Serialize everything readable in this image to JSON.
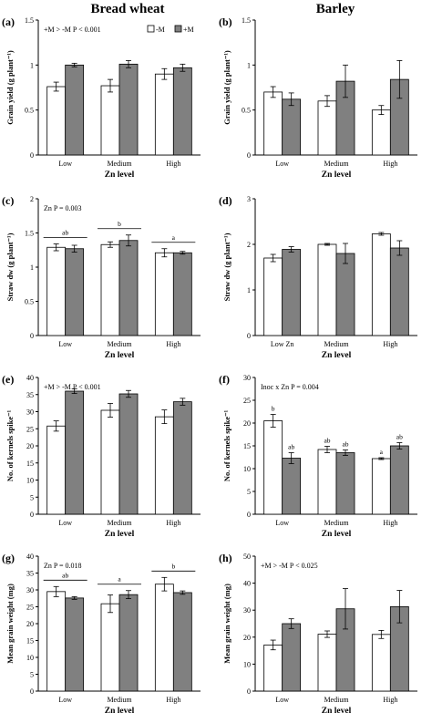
{
  "titles": {
    "left": "Bread wheat",
    "right": "Barley"
  },
  "legend": {
    "minus": "-M",
    "plus": "+M"
  },
  "colors": {
    "minus": "#ffffff",
    "plus": "#808080",
    "axis": "#000000"
  },
  "chart_data": [
    {
      "panel": "(a)",
      "type": "bar",
      "title": "",
      "ylabel": "Grain yield (g plant⁻¹)",
      "xlabel": "Zn level",
      "ylim": [
        0,
        1.5
      ],
      "yticks": [
        0,
        0.5,
        1,
        1.5
      ],
      "categories": [
        "Low",
        "Medium",
        "High"
      ],
      "series": [
        {
          "name": "-M",
          "values": [
            0.76,
            0.77,
            0.9
          ],
          "errors": [
            0.05,
            0.07,
            0.06
          ]
        },
        {
          "name": "+M",
          "values": [
            1.0,
            1.01,
            0.97
          ],
          "errors": [
            0.02,
            0.04,
            0.04
          ]
        }
      ],
      "annotation": "+M > -M  P < 0.001",
      "legend": true
    },
    {
      "panel": "(b)",
      "type": "bar",
      "title": "",
      "ylabel": "Grain yield (g plant⁻¹)",
      "xlabel": "Zn level",
      "ylim": [
        0,
        1.5
      ],
      "yticks": [
        0,
        0.5,
        1,
        1.5
      ],
      "categories": [
        "Low",
        "Medium",
        "High"
      ],
      "series": [
        {
          "name": "-M",
          "values": [
            0.7,
            0.6,
            0.5
          ],
          "errors": [
            0.06,
            0.06,
            0.05
          ]
        },
        {
          "name": "+M",
          "values": [
            0.62,
            0.82,
            0.84
          ],
          "errors": [
            0.07,
            0.18,
            0.21
          ]
        }
      ]
    },
    {
      "panel": "(c)",
      "type": "bar",
      "title": "",
      "ylabel": "Straw dw  (g plant⁻¹)",
      "xlabel": "Zn level",
      "ylim": [
        0,
        2
      ],
      "yticks": [
        0,
        0.5,
        1,
        1.5,
        2
      ],
      "categories": [
        "Low",
        "Medium",
        "High"
      ],
      "series": [
        {
          "name": "-M",
          "values": [
            1.29,
            1.33,
            1.21
          ],
          "errors": [
            0.05,
            0.04,
            0.06
          ]
        },
        {
          "name": "+M",
          "values": [
            1.27,
            1.39,
            1.21
          ],
          "errors": [
            0.05,
            0.08,
            0.02
          ]
        }
      ],
      "annotation": "Zn  P = 0.003",
      "sig_letters": [
        "ab",
        "b",
        "a"
      ]
    },
    {
      "panel": "(d)",
      "type": "bar",
      "title": "",
      "ylabel": "Straw dw  (g plant⁻¹)",
      "xlabel": "Zn level",
      "ylim": [
        0,
        3
      ],
      "yticks": [
        0,
        1,
        2,
        3
      ],
      "categories": [
        "Low Zn",
        "Medium",
        "High"
      ],
      "series": [
        {
          "name": "-M",
          "values": [
            1.7,
            2.0,
            2.23
          ],
          "errors": [
            0.08,
            0.02,
            0.03
          ]
        },
        {
          "name": "+M",
          "values": [
            1.89,
            1.8,
            1.92
          ],
          "errors": [
            0.06,
            0.22,
            0.16
          ]
        }
      ]
    },
    {
      "panel": "(e)",
      "type": "bar",
      "title": "",
      "ylabel": "No. of kernels spike⁻¹",
      "xlabel": "Zn level",
      "ylim": [
        0,
        40
      ],
      "yticks": [
        0,
        5,
        10,
        15,
        20,
        25,
        30,
        35,
        40
      ],
      "categories": [
        "Low",
        "Medium",
        "High"
      ],
      "series": [
        {
          "name": "-M",
          "values": [
            25.8,
            30.4,
            28.5
          ],
          "errors": [
            1.5,
            2.0,
            2.0
          ]
        },
        {
          "name": "+M",
          "values": [
            36.0,
            35.2,
            32.9
          ],
          "errors": [
            0.7,
            1.0,
            1.0
          ]
        }
      ],
      "annotation": "+M > -M  P < 0.001"
    },
    {
      "panel": "(f)",
      "type": "bar",
      "title": "",
      "ylabel": "No. of kernels spike⁻¹",
      "xlabel": "Zn level",
      "ylim": [
        0,
        30
      ],
      "yticks": [
        0,
        5,
        10,
        15,
        20,
        25,
        30
      ],
      "categories": [
        "Low",
        "Medium",
        "High"
      ],
      "series": [
        {
          "name": "-M",
          "values": [
            20.5,
            14.2,
            12.2
          ],
          "errors": [
            1.4,
            0.7,
            0.2
          ],
          "sig": [
            "b",
            "ab",
            "a"
          ]
        },
        {
          "name": "+M",
          "values": [
            12.3,
            13.5,
            15.0
          ],
          "errors": [
            1.2,
            0.6,
            0.7
          ],
          "sig": [
            "ab",
            "ab",
            "ab"
          ]
        }
      ],
      "annotation": "Inoc x Zn  P = 0.004"
    },
    {
      "panel": "(g)",
      "type": "bar",
      "title": "",
      "ylabel": "Mean grain weight (mg)",
      "xlabel": "Zn level",
      "ylim": [
        0,
        40
      ],
      "yticks": [
        0,
        5,
        10,
        15,
        20,
        25,
        30,
        35,
        40
      ],
      "categories": [
        "Low",
        "Medium",
        "High"
      ],
      "series": [
        {
          "name": "-M",
          "values": [
            29.5,
            25.9,
            31.7
          ],
          "errors": [
            1.5,
            2.6,
            2.0
          ]
        },
        {
          "name": "+M",
          "values": [
            27.6,
            28.6,
            29.2
          ],
          "errors": [
            0.4,
            1.2,
            0.5
          ]
        }
      ],
      "annotation": "Zn  P = 0.018",
      "sig_letters": [
        "ab",
        "a",
        "b"
      ]
    },
    {
      "panel": "(h)",
      "type": "bar",
      "title": "",
      "ylabel": "Mean grain weight (mg)",
      "xlabel": "Zn level",
      "ylim": [
        0,
        50
      ],
      "yticks": [
        0,
        10,
        20,
        30,
        40,
        50
      ],
      "categories": [
        "Low",
        "Medium",
        "High"
      ],
      "series": [
        {
          "name": "-M",
          "values": [
            17.1,
            21.1,
            21.0
          ],
          "errors": [
            1.8,
            1.2,
            1.5
          ]
        },
        {
          "name": "+M",
          "values": [
            25.0,
            30.5,
            31.3
          ],
          "errors": [
            1.8,
            7.5,
            6.0
          ]
        }
      ],
      "annotation": "+M > -M  P < 0.025"
    }
  ]
}
